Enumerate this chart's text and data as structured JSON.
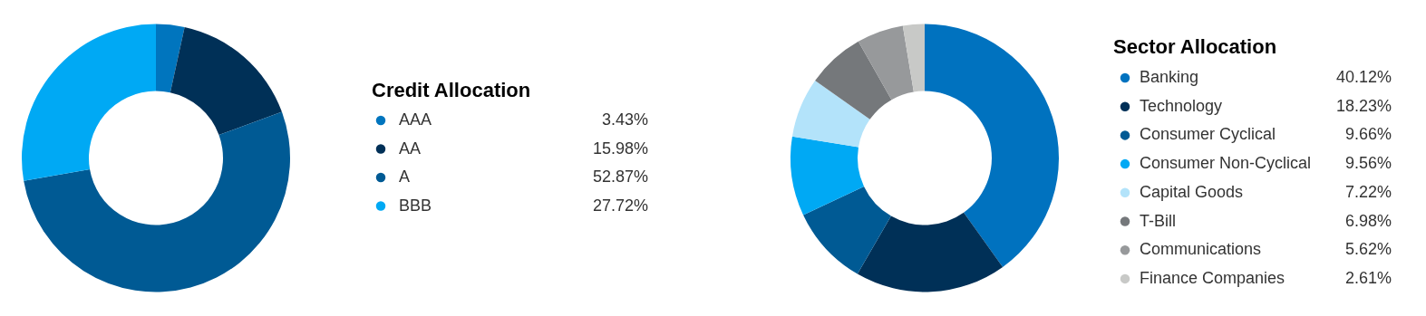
{
  "chart_data": [
    {
      "type": "donut",
      "title": "Credit Allocation",
      "legend": "right",
      "categories": [
        "AAA",
        "AA",
        "A",
        "BBB"
      ],
      "values": [
        3.43,
        15.98,
        52.87,
        27.72
      ],
      "value_labels": [
        "3.43%",
        "15.98%",
        "52.87%",
        "27.72%"
      ],
      "colors": [
        "#0075be",
        "#003057",
        "#005a94",
        "#00a9f4"
      ]
    },
    {
      "type": "donut",
      "title": "Sector Allocation",
      "legend": "right",
      "categories": [
        "Banking",
        "Technology",
        "Consumer Cyclical",
        "Consumer Non-Cyclical",
        "Capital Goods",
        "T-Bill",
        "Communications",
        "Finance Companies"
      ],
      "values": [
        40.12,
        18.23,
        9.66,
        9.56,
        7.22,
        6.98,
        5.62,
        2.61
      ],
      "value_labels": [
        "40.12%",
        "18.23%",
        "9.66%",
        "9.56%",
        "7.22%",
        "6.98%",
        "5.62%",
        "2.61%"
      ],
      "colors": [
        "#0072bf",
        "#003057",
        "#005a94",
        "#00a9f4",
        "#b3e3fa",
        "#75787b",
        "#97999b",
        "#c8c9c7"
      ]
    }
  ]
}
